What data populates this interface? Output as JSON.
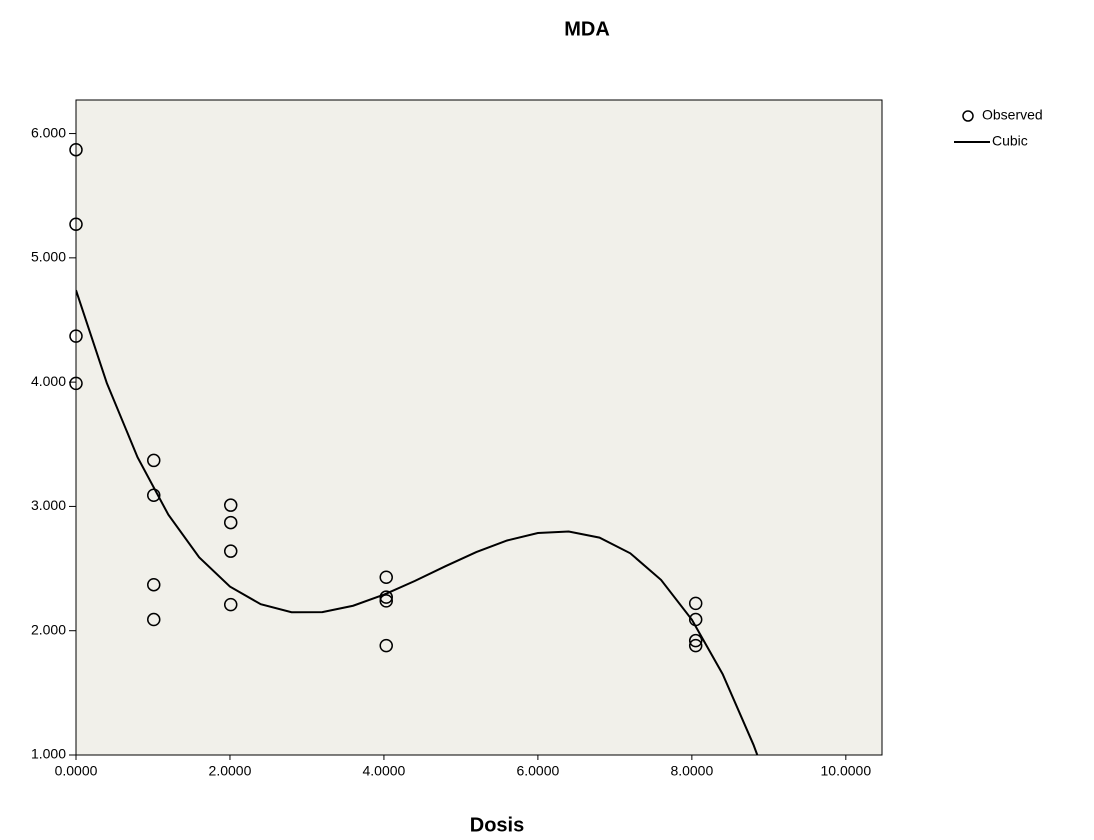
{
  "chart_data": {
    "type": "scatter",
    "title": "MDA",
    "x_label": "Dosis",
    "xlim": [
      0,
      10.47
    ],
    "ylim": [
      1,
      6.27
    ],
    "xticks": [
      {
        "value": 0,
        "label": "0.0000"
      },
      {
        "value": 2,
        "label": "2.0000"
      },
      {
        "value": 4,
        "label": "4.0000"
      },
      {
        "value": 6,
        "label": "6.0000"
      },
      {
        "value": 8,
        "label": "8.0000"
      },
      {
        "value": 10,
        "label": "10.0000"
      }
    ],
    "yticks": [
      {
        "value": 1,
        "label": "1.000"
      },
      {
        "value": 2,
        "label": "2.000"
      },
      {
        "value": 3,
        "label": "3.000"
      },
      {
        "value": 4,
        "label": "4.000"
      },
      {
        "value": 5,
        "label": "5.000"
      },
      {
        "value": 6,
        "label": "6.000"
      }
    ],
    "grid": false,
    "legend": "right",
    "background": "#f1f0ea",
    "series": [
      {
        "name": "Observed",
        "type": "scatter",
        "color": "#000000",
        "x": [
          0,
          0,
          0,
          0,
          1.01,
          1.01,
          1.01,
          1.01,
          2.01,
          2.01,
          2.01,
          2.01,
          4.03,
          4.03,
          4.03,
          4.03,
          8.05,
          8.05,
          8.05,
          8.05
        ],
        "values": [
          5.87,
          5.27,
          4.37,
          3.99,
          3.37,
          3.09,
          2.37,
          2.09,
          3.01,
          2.87,
          2.64,
          2.21,
          2.43,
          2.27,
          2.24,
          1.88,
          2.22,
          2.09,
          1.92,
          1.88
        ]
      },
      {
        "name": "Cubic",
        "type": "line",
        "color": "#000000",
        "x": [
          0,
          0.4,
          0.8,
          1.2,
          1.6,
          2.0,
          2.4,
          2.8,
          3.2,
          3.6,
          4.0,
          4.4,
          4.8,
          5.2,
          5.6,
          6.0,
          6.4,
          6.8,
          7.2,
          7.6,
          8.0,
          8.4,
          8.8,
          8.85
        ],
        "values": [
          4.74,
          3.993,
          3.395,
          2.933,
          2.59,
          2.355,
          2.213,
          2.149,
          2.15,
          2.201,
          2.29,
          2.4,
          2.519,
          2.633,
          2.726,
          2.786,
          2.798,
          2.749,
          2.623,
          2.409,
          2.089,
          1.651,
          1.083,
          1.0
        ]
      }
    ]
  }
}
